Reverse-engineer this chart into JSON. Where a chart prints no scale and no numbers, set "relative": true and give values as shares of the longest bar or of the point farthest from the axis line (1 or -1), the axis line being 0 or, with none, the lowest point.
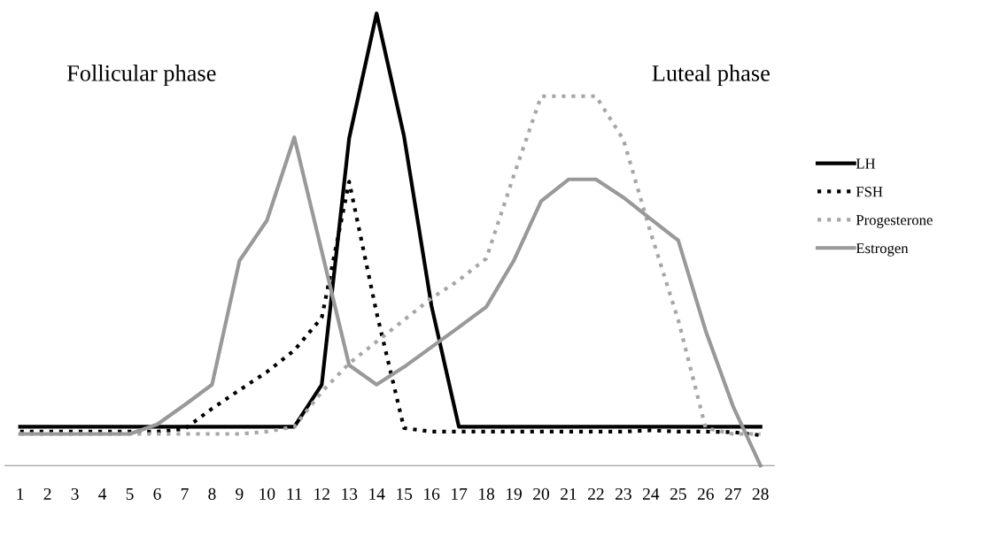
{
  "chart_data": {
    "type": "line",
    "relative": true,
    "tick_labels": "x",
    "legend": "right",
    "grid": false,
    "annotations": [
      "Follicular phase",
      "Luteal phase"
    ],
    "categories": [
      "1",
      "2",
      "3",
      "4",
      "5",
      "6",
      "7",
      "8",
      "9",
      "10",
      "11",
      "12",
      "13",
      "14",
      "15",
      "16",
      "17",
      "18",
      "19",
      "20",
      "21",
      "22",
      "23",
      "24",
      "25",
      "26",
      "27",
      "28"
    ],
    "series": [
      {
        "name": "LH",
        "color": "#000000",
        "line_style": "solid",
        "values": [
          0.086,
          0.086,
          0.086,
          0.086,
          0.086,
          0.086,
          0.086,
          0.086,
          0.086,
          0.086,
          0.086,
          0.179,
          0.724,
          1,
          0.729,
          0.354,
          0.086,
          0.086,
          0.086,
          0.086,
          0.086,
          0.086,
          0.086,
          0.086,
          0.086,
          0.086,
          0.086,
          0.086
        ]
      },
      {
        "name": "FSH",
        "color": "#000000",
        "line_style": "dotted",
        "values": [
          0.075,
          0.075,
          0.075,
          0.075,
          0.075,
          0.075,
          0.081,
          0.126,
          0.167,
          0.207,
          0.255,
          0.327,
          0.628,
          0.338,
          0.083,
          0.075,
          0.075,
          0.075,
          0.075,
          0.075,
          0.075,
          0.075,
          0.075,
          0.078,
          0.075,
          0.075,
          0.074,
          0.067
        ]
      },
      {
        "name": "Progesterone",
        "color": "#a6a6a6",
        "line_style": "dotted",
        "values": [
          0.07,
          0.07,
          0.07,
          0.07,
          0.07,
          0.07,
          0.07,
          0.07,
          0.07,
          0.075,
          0.086,
          0.163,
          0.226,
          0.274,
          0.322,
          0.37,
          0.41,
          0.458,
          0.641,
          0.817,
          0.817,
          0.817,
          0.721,
          0.514,
          0.322,
          0.083,
          0.07,
          0.07
        ]
      },
      {
        "name": "Estrogen",
        "color": "#999999",
        "line_style": "solid",
        "values": [
          0.07,
          0.07,
          0.07,
          0.07,
          0.07,
          0.091,
          0.134,
          0.179,
          0.453,
          0.542,
          0.726,
          0.474,
          0.222,
          0.179,
          0.218,
          0.262,
          0.306,
          0.351,
          0.453,
          0.585,
          0.633,
          0.633,
          0.593,
          0.545,
          0.498,
          0.298,
          0.131,
          0
        ]
      }
    ]
  }
}
